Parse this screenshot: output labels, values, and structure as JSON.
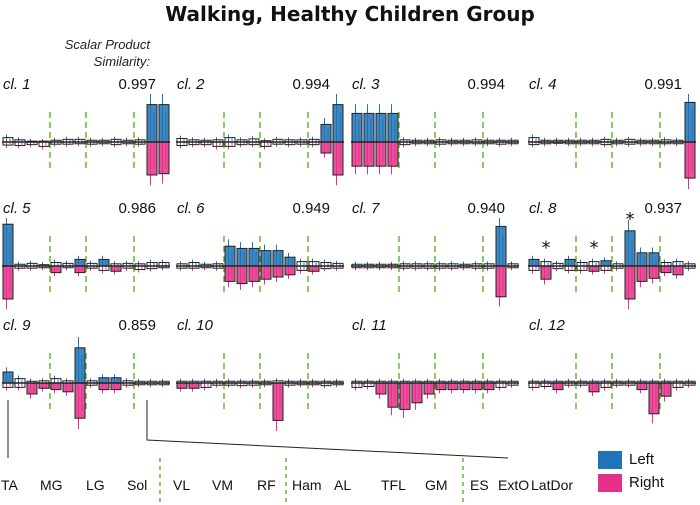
{
  "title": "Walking, Healthy Children Group",
  "similarity_caption": [
    "Scalar Product",
    "Similarity:"
  ],
  "colors": {
    "left": "#1f73b7",
    "right": "#e6308a",
    "divider": "#6cbf3a",
    "box": "#222222"
  },
  "legend": [
    {
      "label": "Left",
      "color": "#1f73b7"
    },
    {
      "label": "Right",
      "color": "#e6308a"
    }
  ],
  "chart_data": {
    "type": "bar",
    "description_units": "normalized activation (full panel half-height = 1)",
    "muscles": [
      "TA",
      "MG",
      "LG",
      "Sol",
      "VL",
      "VM",
      "RF",
      "Ham",
      "AL",
      "TFL",
      "GM",
      "ES",
      "ExtO",
      "LatDor"
    ],
    "group_dividers_after": [
      3,
      6,
      10
    ],
    "series": [
      "Left",
      "Right"
    ],
    "clusters": [
      {
        "label": "cl. 1",
        "similarity": "0.997",
        "left": [
          0.1,
          0.05,
          0.02,
          0.02,
          0.04,
          0.06,
          0.06,
          0.04,
          0.04,
          0.06,
          0.04,
          0.05,
          0.85,
          0.85
        ],
        "right": [
          0.07,
          0.08,
          0.06,
          0.1,
          0.05,
          0.05,
          0.04,
          0.05,
          0.04,
          0.06,
          0.04,
          0.05,
          0.75,
          0.72
        ],
        "asterisks": []
      },
      {
        "label": "cl. 2",
        "similarity": "0.994",
        "left": [
          0.08,
          0.05,
          0.04,
          0.05,
          0.1,
          0.05,
          0.07,
          0.03,
          0.06,
          0.05,
          0.05,
          0.06,
          0.4,
          0.85
        ],
        "right": [
          0.08,
          0.06,
          0.06,
          0.1,
          0.1,
          0.06,
          0.06,
          0.1,
          0.05,
          0.06,
          0.05,
          0.06,
          0.25,
          0.75
        ],
        "asterisks": []
      },
      {
        "label": "cl. 3",
        "similarity": "0.994",
        "left": [
          0.65,
          0.65,
          0.65,
          0.65,
          0.05,
          0.04,
          0.04,
          0.05,
          0.04,
          0.04,
          0.05,
          0.04,
          0.04,
          0.04
        ],
        "right": [
          0.55,
          0.55,
          0.55,
          0.55,
          0.06,
          0.04,
          0.04,
          0.05,
          0.04,
          0.04,
          0.04,
          0.04,
          0.05,
          0.04
        ],
        "asterisks": []
      },
      {
        "label": "cl. 4",
        "similarity": "0.991",
        "left": [
          0.1,
          0.04,
          0.04,
          0.04,
          0.04,
          0.04,
          0.06,
          0.04,
          0.06,
          0.04,
          0.04,
          0.05,
          0.04,
          0.9
        ],
        "right": [
          0.06,
          0.04,
          0.03,
          0.04,
          0.04,
          0.04,
          0.06,
          0.04,
          0.05,
          0.04,
          0.04,
          0.04,
          0.04,
          0.82
        ],
        "asterisks": []
      },
      {
        "label": "cl. 5",
        "similarity": "0.986",
        "left": [
          0.95,
          0.04,
          0.06,
          0.03,
          0.08,
          0.06,
          0.15,
          0.06,
          0.15,
          0.05,
          0.06,
          0.05,
          0.08,
          0.08
        ],
        "right": [
          0.75,
          0.05,
          0.05,
          0.04,
          0.15,
          0.04,
          0.15,
          0.05,
          0.1,
          0.12,
          0.05,
          0.08,
          0.06,
          0.04
        ],
        "asterisks": []
      },
      {
        "label": "cl. 6",
        "similarity": "0.949",
        "left": [
          0.05,
          0.08,
          0.04,
          0.05,
          0.45,
          0.4,
          0.4,
          0.35,
          0.35,
          0.2,
          0.1,
          0.1,
          0.08,
          0.06
        ],
        "right": [
          0.05,
          0.05,
          0.04,
          0.05,
          0.35,
          0.4,
          0.35,
          0.3,
          0.25,
          0.2,
          0.1,
          0.12,
          0.06,
          0.05
        ],
        "asterisks": []
      },
      {
        "label": "cl. 7",
        "similarity": "0.940",
        "left": [
          0.04,
          0.04,
          0.04,
          0.04,
          0.05,
          0.05,
          0.05,
          0.05,
          0.05,
          0.04,
          0.05,
          0.05,
          0.9,
          0.05
        ],
        "right": [
          0.04,
          0.04,
          0.04,
          0.04,
          0.05,
          0.05,
          0.05,
          0.05,
          0.05,
          0.04,
          0.05,
          0.05,
          0.7,
          0.04
        ],
        "asterisks": []
      },
      {
        "label": "cl. 8",
        "similarity": "0.937",
        "left": [
          0.15,
          0.1,
          0.06,
          0.15,
          0.08,
          0.1,
          0.12,
          0.05,
          0.8,
          0.3,
          0.3,
          0.08,
          0.1,
          0.05
        ],
        "right": [
          0.1,
          0.3,
          0.06,
          0.1,
          0.1,
          0.12,
          0.1,
          0.05,
          0.75,
          0.35,
          0.28,
          0.15,
          0.2,
          0.05
        ],
        "asterisks": [
          1,
          5,
          8
        ]
      },
      {
        "label": "cl. 9",
        "similarity": "0.859",
        "left": [
          0.25,
          0.1,
          0.04,
          0.05,
          0.1,
          0.05,
          0.8,
          0.05,
          0.12,
          0.12,
          0.05,
          0.04,
          0.04,
          0.04
        ],
        "right": [
          0.1,
          0.1,
          0.25,
          0.12,
          0.15,
          0.2,
          0.8,
          0.05,
          0.15,
          0.15,
          0.05,
          0.04,
          0.04,
          0.04
        ],
        "asterisks": []
      },
      {
        "label": "cl. 10",
        "similarity": "",
        "left": [
          0.04,
          0.04,
          0.04,
          0.04,
          0.04,
          0.04,
          0.04,
          0.04,
          0.05,
          0.04,
          0.04,
          0.04,
          0.04,
          0.04
        ],
        "right": [
          0.12,
          0.12,
          0.1,
          0.05,
          0.05,
          0.06,
          0.05,
          0.04,
          0.85,
          0.05,
          0.04,
          0.04,
          0.06,
          0.04
        ],
        "asterisks": []
      },
      {
        "label": "cl. 11",
        "similarity": "",
        "left": [
          0.04,
          0.04,
          0.04,
          0.04,
          0.04,
          0.04,
          0.04,
          0.04,
          0.04,
          0.04,
          0.04,
          0.04,
          0.04,
          0.04
        ],
        "right": [
          0.1,
          0.08,
          0.25,
          0.55,
          0.6,
          0.45,
          0.25,
          0.15,
          0.15,
          0.15,
          0.15,
          0.15,
          0.1,
          0.05
        ],
        "asterisks": []
      },
      {
        "label": "cl. 12",
        "similarity": "",
        "left": [
          0.04,
          0.04,
          0.04,
          0.04,
          0.04,
          0.04,
          0.04,
          0.04,
          0.04,
          0.04,
          0.04,
          0.04,
          0.04,
          0.04
        ],
        "right": [
          0.1,
          0.08,
          0.15,
          0.05,
          0.05,
          0.2,
          0.1,
          0.05,
          0.05,
          0.15,
          0.7,
          0.3,
          0.1,
          0.05
        ],
        "asterisks": []
      }
    ]
  }
}
